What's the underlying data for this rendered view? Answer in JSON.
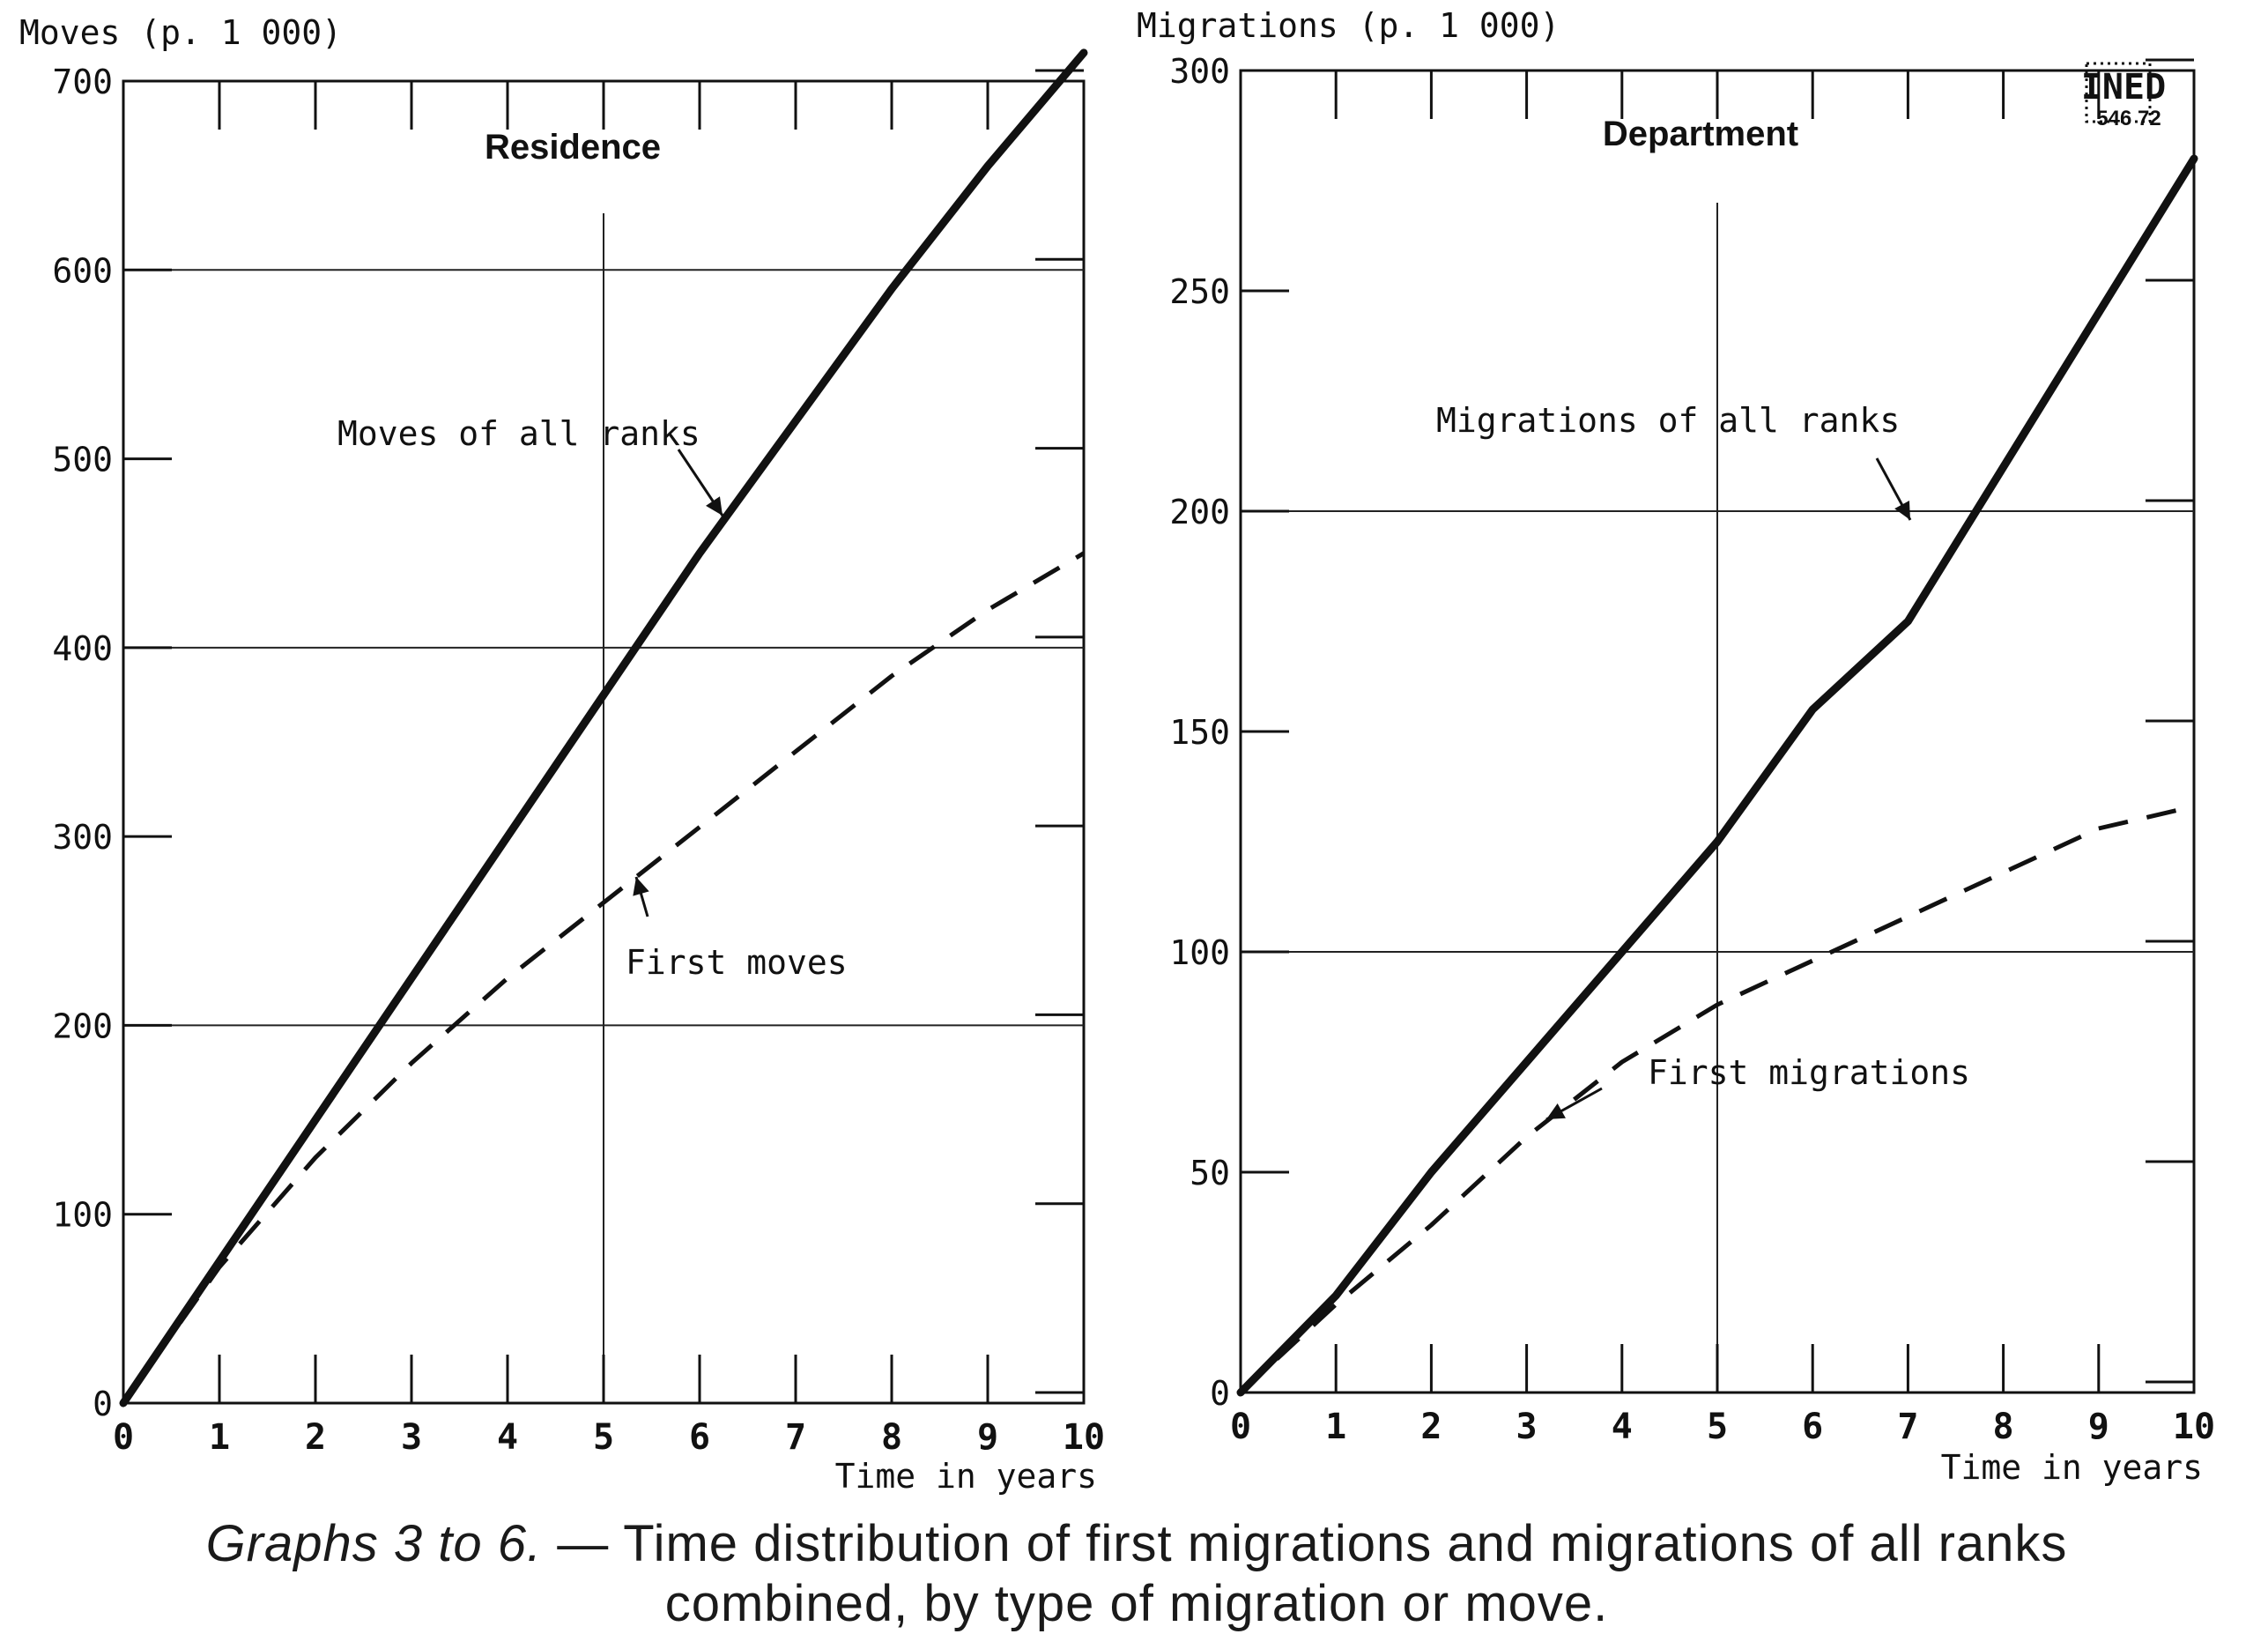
{
  "colors": {
    "ink": "#111111",
    "paper": "#ffffff",
    "grid": "#222222"
  },
  "chart_data": [
    {
      "type": "line",
      "title": "Residence",
      "ylabel": "Moves (p. 1 000)",
      "xlabel": "Time in years",
      "xlim": [
        0,
        10
      ],
      "ylim": [
        0,
        700
      ],
      "x_ticks": [
        0,
        1,
        2,
        3,
        4,
        5,
        6,
        7,
        8,
        9,
        10
      ],
      "y_ticks": [
        0,
        100,
        200,
        300,
        400,
        500,
        600,
        700
      ],
      "grid": true,
      "series": [
        {
          "name": "Moves of all ranks",
          "style": "solid",
          "x": [
            0,
            1,
            2,
            3,
            4,
            5,
            6,
            7,
            8,
            9,
            10
          ],
          "y": [
            0,
            75,
            150,
            225,
            300,
            375,
            450,
            520,
            590,
            655,
            715
          ]
        },
        {
          "name": "First moves",
          "style": "dashed",
          "x": [
            0,
            1,
            2,
            3,
            4,
            5,
            6,
            7,
            8,
            9,
            10
          ],
          "y": [
            0,
            72,
            130,
            180,
            225,
            265,
            305,
            345,
            385,
            420,
            450
          ]
        }
      ]
    },
    {
      "type": "line",
      "title": "Department",
      "ylabel": "Migrations (p. 1 000)",
      "xlabel": "Time in years",
      "xlim": [
        0,
        10
      ],
      "ylim": [
        0,
        300
      ],
      "x_ticks": [
        0,
        1,
        2,
        3,
        4,
        5,
        6,
        7,
        8,
        9,
        10
      ],
      "y_ticks": [
        0,
        50,
        100,
        150,
        200,
        250,
        300
      ],
      "grid": true,
      "series": [
        {
          "name": "Migrations of all ranks",
          "style": "solid",
          "x": [
            0,
            1,
            2,
            3,
            4,
            5,
            6,
            7,
            8,
            9,
            10
          ],
          "y": [
            0,
            22,
            50,
            75,
            100,
            125,
            155,
            175,
            210,
            245,
            280
          ]
        },
        {
          "name": "First migrations",
          "style": "dashed",
          "x": [
            0,
            1,
            2,
            3,
            4,
            5,
            6,
            7,
            8,
            9,
            10
          ],
          "y": [
            0,
            20,
            38,
            58,
            75,
            88,
            98,
            108,
            118,
            128,
            133
          ]
        }
      ]
    }
  ],
  "stamp": {
    "text": "INED",
    "number": "546 72"
  },
  "caption": {
    "lead": "Graphs 3 to 6.",
    "body": " — Time distribution of first migrations and migrations of all ranks combined, by type of migration or move."
  }
}
